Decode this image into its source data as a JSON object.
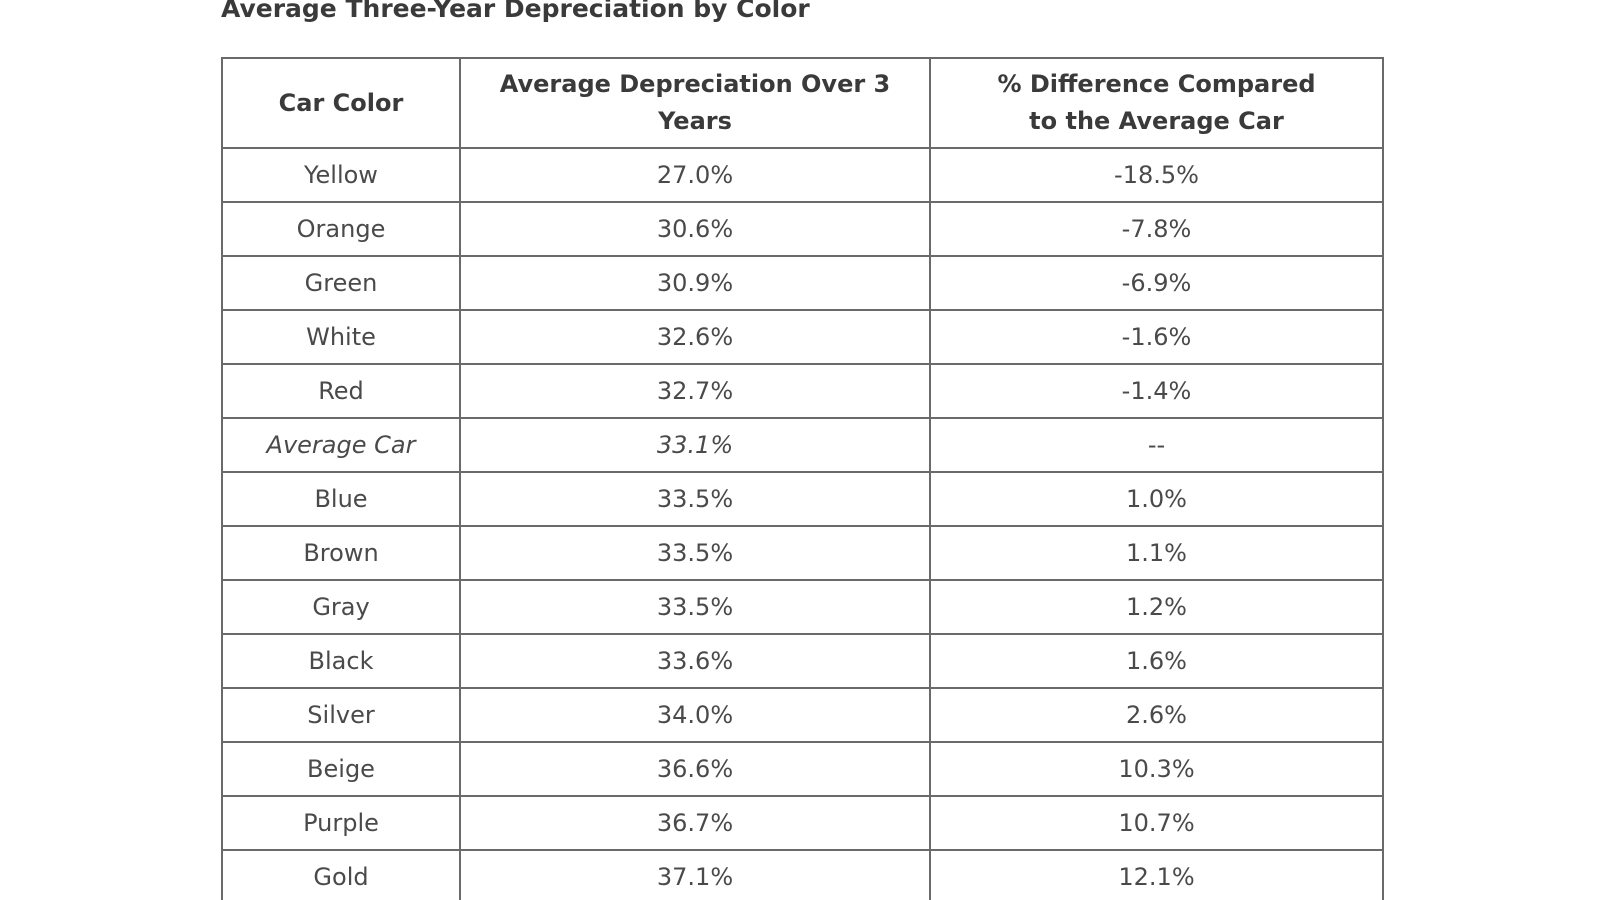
{
  "title": "Average Three-Year Depreciation by Color",
  "columns": [
    "Car Color",
    "Average Depreciation Over 3 Years",
    "% Difference Compared to the Average Car"
  ],
  "rows": [
    {
      "color": "Yellow",
      "depreciation": "27.0%",
      "difference": "-18.5%"
    },
    {
      "color": "Orange",
      "depreciation": "30.6%",
      "difference": "-7.8%"
    },
    {
      "color": "Green",
      "depreciation": "30.9%",
      "difference": "-6.9%"
    },
    {
      "color": "White",
      "depreciation": "32.6%",
      "difference": "-1.6%"
    },
    {
      "color": "Red",
      "depreciation": "32.7%",
      "difference": "-1.4%"
    },
    {
      "color": "Average Car",
      "depreciation": "33.1%",
      "difference": "--"
    },
    {
      "color": "Blue",
      "depreciation": "33.5%",
      "difference": "1.0%"
    },
    {
      "color": "Brown",
      "depreciation": "33.5%",
      "difference": "1.1%"
    },
    {
      "color": "Gray",
      "depreciation": "33.5%",
      "difference": "1.2%"
    },
    {
      "color": "Black",
      "depreciation": "33.6%",
      "difference": "1.6%"
    },
    {
      "color": "Silver",
      "depreciation": "34.0%",
      "difference": "2.6%"
    },
    {
      "color": "Beige",
      "depreciation": "36.6%",
      "difference": "10.3%"
    },
    {
      "color": "Purple",
      "depreciation": "36.7%",
      "difference": "10.7%"
    },
    {
      "color": "Gold",
      "depreciation": "37.1%",
      "difference": "12.1%"
    }
  ]
}
